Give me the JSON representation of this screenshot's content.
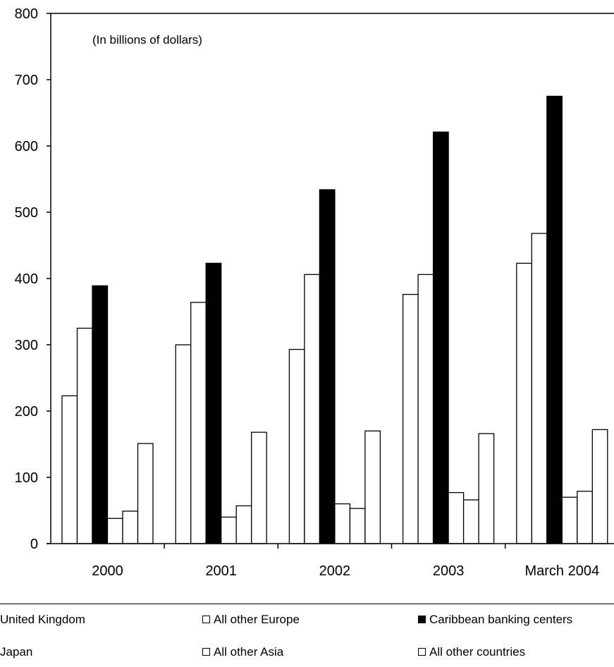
{
  "chart_data": {
    "type": "bar",
    "subtitle": "(In billions of dollars)",
    "categories": [
      "2000",
      "2001",
      "2002",
      "2003",
      "March 2004"
    ],
    "ylim": [
      0,
      800
    ],
    "yticks": [
      "0",
      "100",
      "200",
      "300",
      "400",
      "500",
      "600",
      "700",
      "800"
    ],
    "grid": false,
    "legend_position": "bottom",
    "series": [
      {
        "name": "United Kingdom",
        "color": "#ffffff",
        "values": [
          223,
          300,
          293,
          376,
          423
        ]
      },
      {
        "name": "All other Europe",
        "color": "#ffffff",
        "values": [
          325,
          364,
          406,
          406,
          468
        ]
      },
      {
        "name": "Caribbean banking centers",
        "color": "#000000",
        "values": [
          389,
          423,
          534,
          621,
          675
        ]
      },
      {
        "name": "Japan",
        "color": "#ffffff",
        "values": [
          38,
          40,
          60,
          77,
          70
        ]
      },
      {
        "name": "All other Asia",
        "color": "#ffffff",
        "values": [
          49,
          57,
          53,
          66,
          79
        ]
      },
      {
        "name": "All other countries",
        "color": "#ffffff",
        "values": [
          151,
          168,
          170,
          166,
          172
        ]
      }
    ]
  }
}
